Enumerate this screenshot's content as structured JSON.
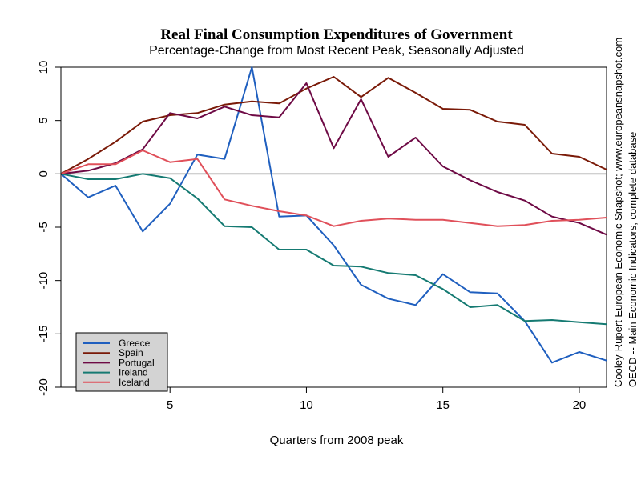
{
  "chart_data": {
    "type": "line",
    "title": "Real Final Consumption Expenditures of Government",
    "subtitle": "Percentage-Change from Most Recent Peak, Seasonally Adjusted",
    "xlabel": "Quarters from 2008 peak",
    "ylabel": "",
    "xlim": [
      1,
      21
    ],
    "ylim": [
      -20,
      10
    ],
    "x_ticks": [
      5,
      10,
      15,
      20
    ],
    "y_ticks": [
      10,
      5,
      0,
      -5,
      -10,
      -15,
      -20
    ],
    "zero_line": true,
    "grid": false,
    "legend_position": "bottom-left",
    "side_notes": [
      "Cooley-Rupert European Economic Snapshot; www.europeansnapshot.com",
      "OECD -- Main Economic Indicators, complete database"
    ],
    "x": [
      1,
      2,
      3,
      4,
      5,
      6,
      7,
      8,
      9,
      10,
      11,
      12,
      13,
      14,
      15,
      16,
      17,
      18,
      19,
      20,
      21
    ],
    "series": [
      {
        "name": "Greece",
        "color": "#1f5fbf",
        "values": [
          0,
          -2.2,
          -1.1,
          -5.4,
          -2.8,
          1.8,
          1.4,
          10.0,
          -4.0,
          -3.9,
          -6.7,
          -10.4,
          -11.7,
          -12.3,
          -9.4,
          -11.1,
          -11.2,
          -13.8,
          -17.7,
          -16.7,
          -17.5
        ]
      },
      {
        "name": "Spain",
        "color": "#7a1a08",
        "values": [
          0,
          1.4,
          3.0,
          4.9,
          5.5,
          5.7,
          6.5,
          6.8,
          6.6,
          8.0,
          9.1,
          7.2,
          9.0,
          7.6,
          6.1,
          6.0,
          4.9,
          4.6,
          1.9,
          1.6,
          0.4
        ]
      },
      {
        "name": "Portugal",
        "color": "#6e0a45",
        "values": [
          0,
          0.3,
          1.0,
          2.3,
          5.7,
          5.2,
          6.3,
          5.5,
          5.3,
          8.5,
          2.4,
          7.0,
          1.6,
          3.4,
          0.7,
          -0.6,
          -1.7,
          -2.5,
          -4.0,
          -4.6,
          -5.7
        ]
      },
      {
        "name": "Ireland",
        "color": "#157a72",
        "values": [
          0,
          -0.5,
          -0.5,
          0.0,
          -0.4,
          -2.3,
          -4.9,
          -5.0,
          -7.1,
          -7.1,
          -8.6,
          -8.7,
          -9.3,
          -9.5,
          -10.8,
          -12.5,
          -12.3,
          -13.8,
          -13.7,
          -13.9,
          -14.1
        ]
      },
      {
        "name": "Iceland",
        "color": "#e0505a",
        "values": [
          0,
          0.9,
          0.9,
          2.2,
          1.1,
          1.4,
          -2.4,
          -3.0,
          -3.5,
          -3.9,
          -4.9,
          -4.4,
          -4.2,
          -4.3,
          -4.3,
          -4.6,
          -4.9,
          -4.8,
          -4.4,
          -4.3,
          -4.1
        ]
      }
    ]
  }
}
